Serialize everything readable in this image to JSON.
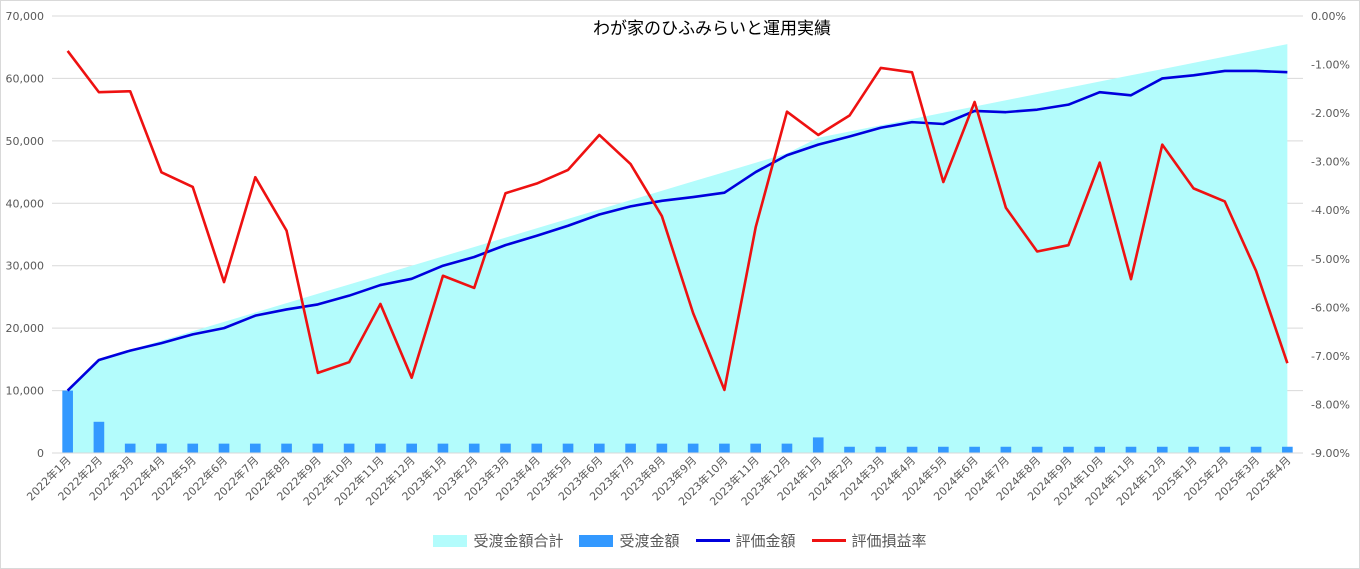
{
  "chart_data": {
    "type": "combo",
    "title": "わが家のひふみらいと運用実績",
    "categories": [
      "2022年1月",
      "2022年2月",
      "2022年3月",
      "2022年4月",
      "2022年5月",
      "2022年6月",
      "2022年7月",
      "2022年8月",
      "2022年9月",
      "2022年10月",
      "2022年11月",
      "2022年12月",
      "2023年1月",
      "2023年2月",
      "2023年3月",
      "2023年4月",
      "2023年5月",
      "2023年6月",
      "2023年7月",
      "2023年8月",
      "2023年9月",
      "2023年10月",
      "2023年11月",
      "2023年12月",
      "2024年1月",
      "2024年2月",
      "2024年3月",
      "2024年4月",
      "2024年5月",
      "2024年6月",
      "2024年7月",
      "2024年8月",
      "2024年9月",
      "2024年10月",
      "2024年11月",
      "2024年12月",
      "2025年1月",
      "2025年2月",
      "2025年3月",
      "2025年4月"
    ],
    "y_left": {
      "min": 0,
      "max": 70000,
      "step": 10000,
      "tick_labels": [
        "0",
        "10,000",
        "20,000",
        "30,000",
        "40,000",
        "50,000",
        "60,000",
        "70,000"
      ]
    },
    "y_right": {
      "min": -9,
      "max": 0,
      "step": 1,
      "tick_labels": [
        "0.00%",
        "-1.00%",
        "-2.00%",
        "-3.00%",
        "-4.00%",
        "-5.00%",
        "-6.00%",
        "-7.00%",
        "-8.00%",
        "-9.00%"
      ]
    },
    "grid": true,
    "legend_position": "bottom",
    "series": [
      {
        "name": "受渡金額合計",
        "type": "area",
        "axis": "left",
        "color": "#b3fcfc",
        "values": [
          10000,
          15000,
          16500,
          18000,
          19500,
          21000,
          22500,
          24000,
          25500,
          27000,
          28500,
          30000,
          31500,
          33000,
          34500,
          36000,
          37500,
          39000,
          40500,
          42000,
          43500,
          45000,
          46500,
          48000,
          50500,
          51500,
          52500,
          53500,
          54500,
          55500,
          56500,
          57500,
          58500,
          59500,
          60500,
          61500,
          62500,
          63500,
          64500,
          65500
        ]
      },
      {
        "name": "受渡金額",
        "type": "bar",
        "axis": "left",
        "color": "#3399ff",
        "values": [
          10000,
          5000,
          1500,
          1500,
          1500,
          1500,
          1500,
          1500,
          1500,
          1500,
          1500,
          1500,
          1500,
          1500,
          1500,
          1500,
          1500,
          1500,
          1500,
          1500,
          1500,
          1500,
          1500,
          1500,
          2500,
          1000,
          1000,
          1000,
          1000,
          1000,
          1000,
          1000,
          1000,
          1000,
          1000,
          1000,
          1000,
          1000,
          1000,
          1000
        ]
      },
      {
        "name": "評価金額",
        "type": "line",
        "axis": "left",
        "color": "#0000dd",
        "values": [
          10000,
          14900,
          16400,
          17600,
          19000,
          20000,
          22000,
          23000,
          23800,
          25200,
          26900,
          27900,
          30000,
          31400,
          33300,
          34800,
          36400,
          38200,
          39500,
          40400,
          41000,
          41700,
          45000,
          47700,
          49400,
          50700,
          52100,
          53000,
          52700,
          54800,
          54600,
          55000,
          55800,
          57800,
          57300,
          60000,
          60500,
          61200,
          61200,
          61000
        ]
      },
      {
        "name": "評価損益率",
        "type": "line",
        "axis": "right",
        "color": "#ee1111",
        "values": [
          -0.72,
          -1.57,
          -1.55,
          -3.22,
          -3.52,
          -5.48,
          -3.32,
          -4.42,
          -7.35,
          -7.13,
          -5.93,
          -7.45,
          -5.35,
          -5.6,
          -3.65,
          -3.45,
          -3.17,
          -2.45,
          -3.05,
          -4.12,
          -6.12,
          -7.7,
          -4.35,
          -1.97,
          -2.45,
          -2.05,
          -1.07,
          -1.16,
          -3.42,
          -1.77,
          -3.95,
          -4.85,
          -4.72,
          -3.02,
          -5.42,
          -2.65,
          -3.55,
          -3.82,
          -5.25,
          -7.15
        ]
      }
    ]
  }
}
